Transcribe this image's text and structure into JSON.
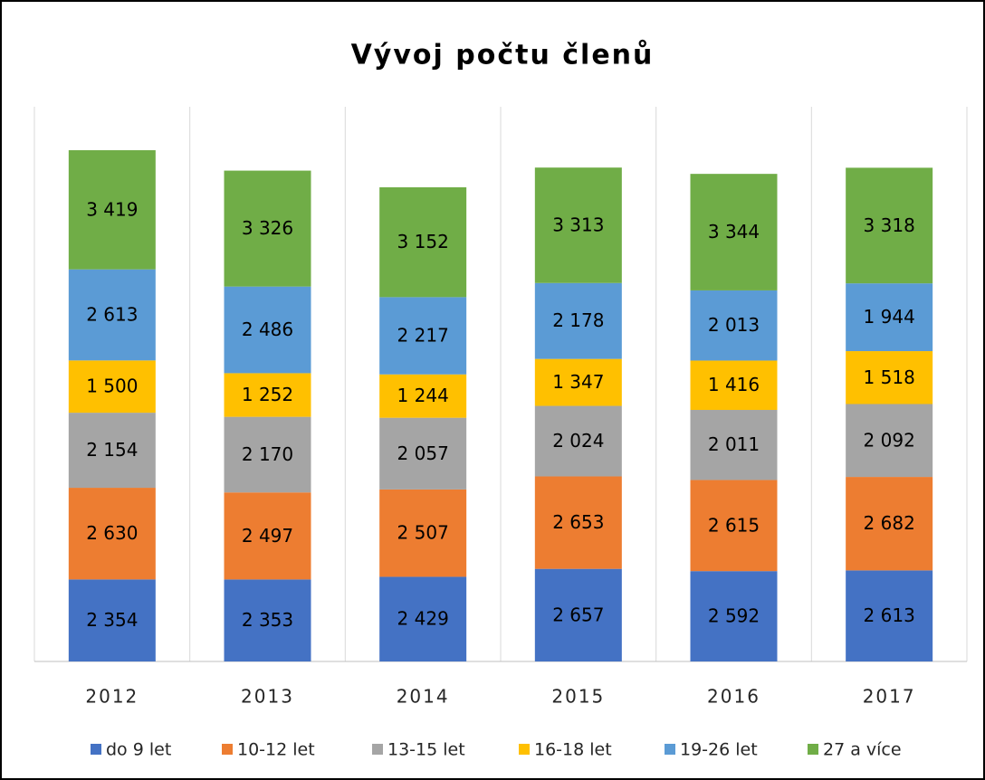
{
  "chart_data": {
    "type": "stacked_bar",
    "title": "Vývoj počtu členů",
    "categories": [
      "2012",
      "2013",
      "2014",
      "2015",
      "2016",
      "2017"
    ],
    "series": [
      {
        "name": "do 9 let",
        "color": "#4472c4",
        "values": [
          2354,
          2353,
          2429,
          2657,
          2592,
          2613
        ],
        "value_labels": [
          "2 354",
          "2 353",
          "2 429",
          "2 657",
          "2 592",
          "2 613"
        ]
      },
      {
        "name": "10-12 let",
        "color": "#ed7d31",
        "values": [
          2630,
          2497,
          2507,
          2653,
          2615,
          2682
        ],
        "value_labels": [
          "2 630",
          "2 497",
          "2 507",
          "2 653",
          "2 615",
          "2 682"
        ]
      },
      {
        "name": "13-15 let",
        "color": "#a5a5a5",
        "values": [
          2154,
          2170,
          2057,
          2024,
          2011,
          2092
        ],
        "value_labels": [
          "2 154",
          "2 170",
          "2 057",
          "2 024",
          "2 011",
          "2 092"
        ]
      },
      {
        "name": "16-18 let",
        "color": "#ffc000",
        "values": [
          1500,
          1252,
          1244,
          1347,
          1416,
          1518
        ],
        "value_labels": [
          "1 500",
          "1 252",
          "1 244",
          "1 347",
          "1 416",
          "1 518"
        ]
      },
      {
        "name": "19-26 let",
        "color": "#5b9bd5",
        "values": [
          2613,
          2486,
          2217,
          2178,
          2013,
          1944
        ],
        "value_labels": [
          "2 613",
          "2 486",
          "2 217",
          "2 178",
          "2 013",
          "1 944"
        ]
      },
      {
        "name": "27 a více",
        "color": "#70ad47",
        "values": [
          3419,
          3326,
          3152,
          3313,
          3344,
          3318
        ],
        "value_labels": [
          "3 419",
          "3 326",
          "3 152",
          "3 313",
          "3 344",
          "3 318"
        ]
      }
    ],
    "grid": true
  }
}
